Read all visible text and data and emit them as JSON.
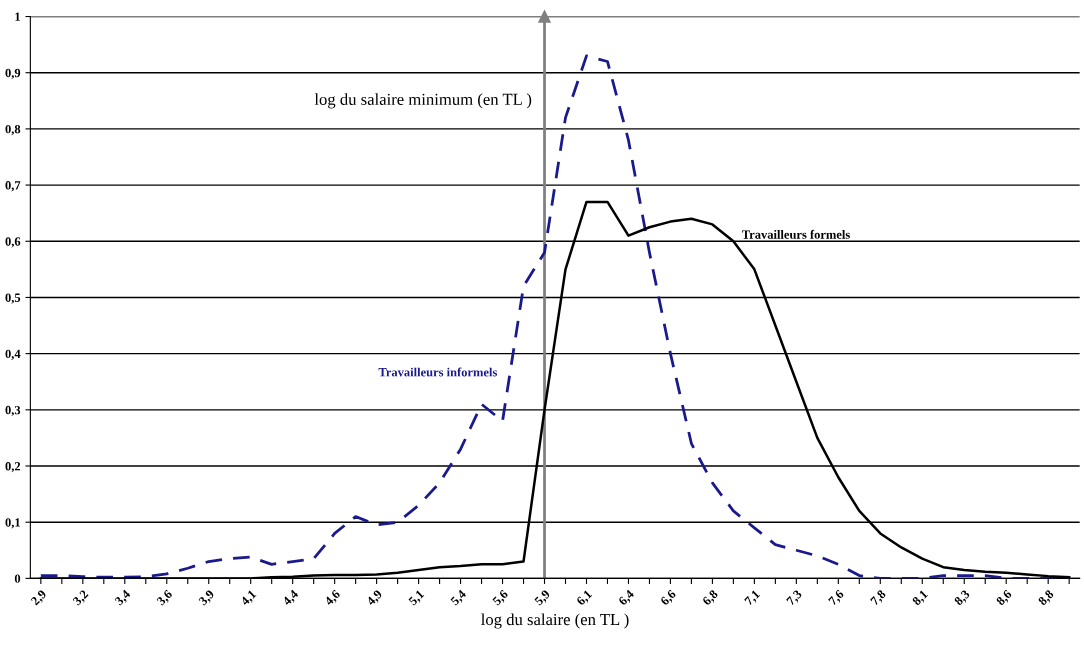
{
  "chart_data": {
    "type": "line",
    "xlabel": "log du salaire (en TL )",
    "categories": [
      "2,9",
      null,
      "3,2",
      null,
      "3,4",
      null,
      "3,6",
      null,
      "3,9",
      null,
      "4,1",
      null,
      "4,4",
      null,
      "4,6",
      null,
      "4,9",
      null,
      "5,1",
      null,
      "5,4",
      null,
      "5,6",
      null,
      "5,9",
      null,
      "6,1",
      null,
      "6,4",
      null,
      "6,6",
      null,
      "6,8",
      null,
      "7,1",
      null,
      "7,3",
      null,
      "7,6",
      null,
      "7,8",
      null,
      "8,1",
      null,
      "8,3",
      null,
      "8,6",
      null,
      "8,8",
      null
    ],
    "series": [
      {
        "name": "Travailleurs informels",
        "color": "#1a1a8c",
        "line_style": "dashed",
        "values": [
          0.005,
          0.005,
          0.003,
          0.002,
          0.002,
          0.003,
          0.008,
          0.018,
          0.03,
          0.035,
          0.038,
          0.025,
          0.03,
          0.035,
          0.08,
          0.11,
          0.095,
          0.1,
          0.13,
          0.17,
          0.23,
          0.31,
          0.28,
          0.52,
          0.58,
          0.82,
          0.93,
          0.92,
          0.78,
          0.58,
          0.4,
          0.24,
          0.17,
          0.12,
          0.09,
          0.06,
          0.05,
          0.04,
          0.025,
          0.005,
          0.0,
          0.0,
          0.0,
          0.005,
          0.005,
          0.005,
          0.0,
          0.0,
          0.0,
          0.0
        ]
      },
      {
        "name": "Travailleurs formels",
        "color": "#000000",
        "line_style": "solid",
        "values": [
          0,
          0,
          0,
          0,
          0,
          0,
          0,
          0,
          0,
          0,
          0,
          0.002,
          0.003,
          0.005,
          0.006,
          0.006,
          0.007,
          0.01,
          0.015,
          0.02,
          0.022,
          0.025,
          0.025,
          0.03,
          0.3,
          0.55,
          0.67,
          0.67,
          0.61,
          0.625,
          0.635,
          0.64,
          0.63,
          0.6,
          0.55,
          0.45,
          0.35,
          0.25,
          0.18,
          0.12,
          0.08,
          0.055,
          0.035,
          0.02,
          0.015,
          0.012,
          0.01,
          0.007,
          0.004,
          0.002
        ]
      }
    ],
    "ylim": [
      0,
      1
    ],
    "yticks": [
      0,
      {
        "value": 0.1,
        "label": "0,1"
      },
      {
        "value": 0.2,
        "label": "0,2"
      },
      {
        "value": 0.3,
        "label": "0,3"
      },
      {
        "value": 0.4,
        "label": "0,4"
      },
      {
        "value": 0.5,
        "label": "0,5"
      },
      {
        "value": 0.6,
        "label": "0,6"
      },
      {
        "value": 0.7,
        "label": "0,7"
      },
      {
        "value": 0.8,
        "label": "0,8"
      },
      {
        "value": 0.9,
        "label": "0,9"
      },
      1
    ],
    "ref_lines": [
      {
        "axis": "x",
        "value": "5,9",
        "label": "log du salaire minimum (en TL )",
        "color": "#808080"
      }
    ],
    "grid": "y",
    "legend": false,
    "marker": "none"
  }
}
